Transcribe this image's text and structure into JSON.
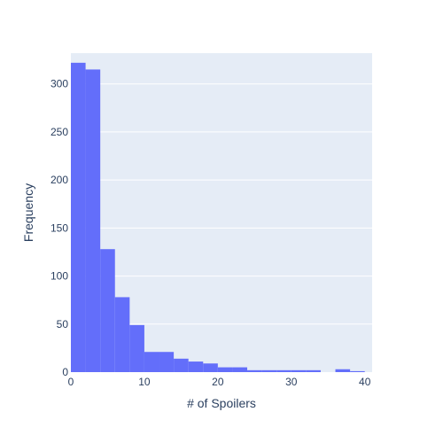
{
  "chart_data": {
    "type": "bar",
    "subtype": "histogram",
    "xlabel": "# of Spoilers",
    "ylabel": "Frequency",
    "xlim": [
      0,
      41
    ],
    "ylim": [
      0,
      332
    ],
    "x_ticks": [
      0,
      10,
      20,
      30,
      40
    ],
    "y_ticks": [
      0,
      50,
      100,
      150,
      200,
      250,
      300
    ],
    "grid": true,
    "bar_color": "#636efa",
    "plot_background": "#e5ecf6",
    "bins": [
      {
        "x0": 0,
        "x1": 2,
        "count": 322
      },
      {
        "x0": 2,
        "x1": 4,
        "count": 315
      },
      {
        "x0": 4,
        "x1": 6,
        "count": 128
      },
      {
        "x0": 6,
        "x1": 8,
        "count": 78
      },
      {
        "x0": 8,
        "x1": 10,
        "count": 49
      },
      {
        "x0": 10,
        "x1": 12,
        "count": 21
      },
      {
        "x0": 12,
        "x1": 14,
        "count": 21
      },
      {
        "x0": 14,
        "x1": 16,
        "count": 14
      },
      {
        "x0": 16,
        "x1": 18,
        "count": 11
      },
      {
        "x0": 18,
        "x1": 20,
        "count": 9
      },
      {
        "x0": 20,
        "x1": 22,
        "count": 5
      },
      {
        "x0": 22,
        "x1": 24,
        "count": 5
      },
      {
        "x0": 24,
        "x1": 26,
        "count": 2
      },
      {
        "x0": 26,
        "x1": 28,
        "count": 2
      },
      {
        "x0": 28,
        "x1": 30,
        "count": 2
      },
      {
        "x0": 30,
        "x1": 32,
        "count": 2
      },
      {
        "x0": 32,
        "x1": 34,
        "count": 2
      },
      {
        "x0": 34,
        "x1": 36,
        "count": 0
      },
      {
        "x0": 36,
        "x1": 38,
        "count": 3
      },
      {
        "x0": 38,
        "x1": 40,
        "count": 1
      }
    ]
  }
}
